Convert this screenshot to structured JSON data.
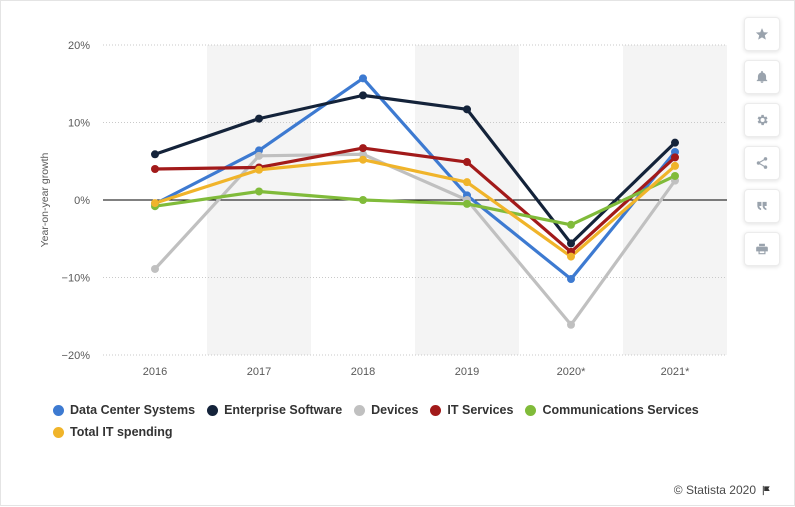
{
  "chart_data": {
    "type": "line",
    "categories": [
      "2016",
      "2017",
      "2018",
      "2019",
      "2020*",
      "2021*"
    ],
    "ylabel": "Year-on-year growth",
    "ylim": [
      -20,
      20
    ],
    "yticks": [
      "20%",
      "10%",
      "0%",
      "−10%",
      "−20%"
    ],
    "ytick_values": [
      20,
      10,
      0,
      -10,
      -20
    ],
    "grid": true,
    "legend_position": "bottom",
    "series": [
      {
        "name": "Data Center Systems",
        "color": "#3d7ad1",
        "values": [
          -0.5,
          6.4,
          15.7,
          0.6,
          -10.2,
          6.2
        ]
      },
      {
        "name": "Enterprise Software",
        "color": "#14233a",
        "values": [
          5.9,
          10.5,
          13.5,
          11.7,
          -5.6,
          7.4
        ]
      },
      {
        "name": "Devices",
        "color": "#c0c0c0",
        "values": [
          -8.9,
          5.7,
          5.9,
          0.0,
          -16.1,
          2.5
        ]
      },
      {
        "name": "IT Services",
        "color": "#a21a1a",
        "values": [
          4.0,
          4.2,
          6.7,
          4.9,
          -6.7,
          5.5
        ]
      },
      {
        "name": "Communications Services",
        "color": "#80bb3a",
        "values": [
          -0.8,
          1.1,
          0.0,
          -0.5,
          -3.2,
          3.1
        ]
      },
      {
        "name": "Total IT spending",
        "color": "#f0b42a",
        "values": [
          -0.4,
          3.9,
          5.2,
          2.3,
          -7.3,
          4.4
        ]
      }
    ]
  },
  "toolbar": {
    "buttons": [
      {
        "name": "star-button",
        "icon": "star-icon"
      },
      {
        "name": "notification-button",
        "icon": "bell-icon"
      },
      {
        "name": "settings-button",
        "icon": "gear-icon"
      },
      {
        "name": "share-button",
        "icon": "share-icon"
      },
      {
        "name": "cite-button",
        "icon": "quote-icon"
      },
      {
        "name": "print-button",
        "icon": "printer-icon"
      }
    ]
  },
  "credit": {
    "text": "© Statista 2020",
    "icon": "flag-icon"
  }
}
